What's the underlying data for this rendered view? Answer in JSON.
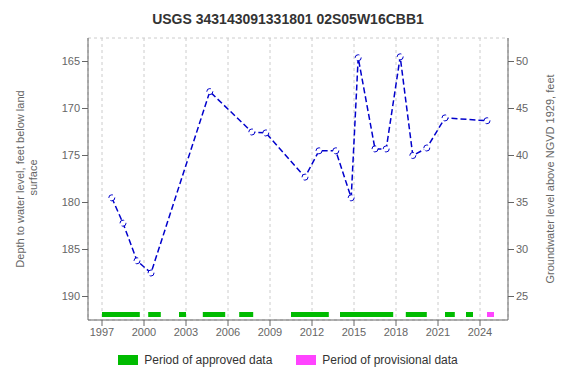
{
  "chart_data": {
    "type": "line",
    "title": "USGS 343143091331801 02S05W16CBB1",
    "ylabel": "Depth to water level, feet below land\n surface",
    "y2label": "Groundwater level above NGVD 1929, feet",
    "x": [
      1997.7,
      1998.5,
      1999.5,
      2000.5,
      2004.7,
      2007.7,
      2008.7,
      2011.5,
      2012.5,
      2013.7,
      2014.8,
      2015.3,
      2016.5,
      2017.3,
      2018.3,
      2019.2,
      2020.2,
      2021.5,
      2024.5
    ],
    "values": [
      179.5,
      182.2,
      186.2,
      187.5,
      168.2,
      172.5,
      172.6,
      177.3,
      174.5,
      174.5,
      179.5,
      164.6,
      174.3,
      174.3,
      164.5,
      175.0,
      174.2,
      171.0,
      171.3
    ],
    "color": "#0000cc",
    "marker": "circle",
    "line_style": "dashed",
    "xlim": [
      1996.0,
      2026.0
    ],
    "xticks": [
      1997,
      2000,
      2003,
      2006,
      2009,
      2012,
      2015,
      2018,
      2021,
      2024
    ],
    "ylim": [
      192.5,
      162.5
    ],
    "yticks": [
      165,
      170,
      175,
      180,
      185,
      190
    ],
    "y2lim": [
      22.5,
      52.5
    ],
    "y2ticks": [
      25,
      30,
      35,
      40,
      45,
      50
    ],
    "grid": true,
    "periods": [
      {
        "name": "Period of approved data",
        "color": "#00bb00",
        "segments": [
          [
            1997.0,
            1999.7
          ],
          [
            2000.3,
            2001.2
          ],
          [
            2002.5,
            2003.0
          ],
          [
            2004.2,
            2005.8
          ],
          [
            2006.8,
            2007.8
          ],
          [
            2010.5,
            2013.2
          ],
          [
            2014.0,
            2017.8
          ],
          [
            2018.7,
            2020.2
          ],
          [
            2021.5,
            2022.2
          ],
          [
            2023.0,
            2023.5
          ]
        ]
      },
      {
        "name": "Period of provisional data",
        "color": "#ff44ff",
        "segments": [
          [
            2024.5,
            2025.0
          ]
        ]
      }
    ]
  }
}
